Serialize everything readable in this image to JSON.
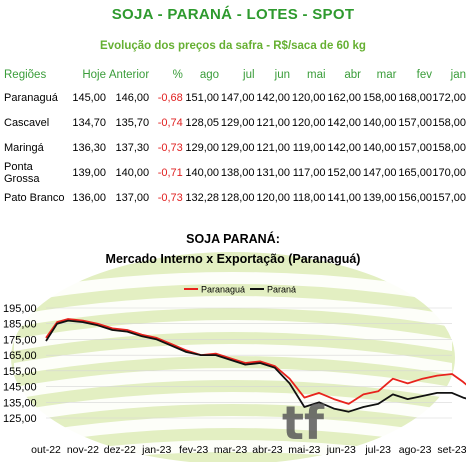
{
  "header": {
    "title": "SOJA - PARANÁ - LOTES - SPOT",
    "subtitle": "Evolução dos preços da safra - R$/saca de 60 kg"
  },
  "table": {
    "columns": [
      "Regiões",
      "Hoje",
      "Anterior",
      "%",
      "ago",
      "jul",
      "jun",
      "mai",
      "abr",
      "mar",
      "fev",
      "jan"
    ],
    "rows": [
      [
        "Paranaguá",
        "145,00",
        "146,00",
        "-0,68",
        "151,00",
        "147,00",
        "142,00",
        "120,00",
        "162,00",
        "158,00",
        "168,00",
        "172,00"
      ],
      [
        "Cascavel",
        "134,70",
        "135,70",
        "-0,74",
        "128,05",
        "129,00",
        "121,00",
        "120,00",
        "142,00",
        "140,00",
        "157,00",
        "158,00"
      ],
      [
        "Maringá",
        "136,30",
        "137,30",
        "-0,73",
        "129,00",
        "129,00",
        "121,00",
        "119,00",
        "142,00",
        "140,00",
        "157,00",
        "158,00"
      ],
      [
        "Ponta Grossa",
        "139,00",
        "140,00",
        "-0,71",
        "140,00",
        "138,00",
        "131,00",
        "117,00",
        "152,00",
        "147,00",
        "165,00",
        "170,00"
      ],
      [
        "Pato Branco",
        "136,00",
        "137,00",
        "-0,73",
        "132,28",
        "128,00",
        "120,00",
        "118,00",
        "141,00",
        "139,00",
        "156,00",
        "157,00"
      ]
    ]
  },
  "chart_data": {
    "type": "line",
    "title": "SOJA PARANÁ:",
    "subtitle": "Mercado Interno x Exportação (Paranaguá)",
    "xlabel": "",
    "ylabel": "",
    "ylim": [
      125,
      195
    ],
    "yticks": [
      "195,00",
      "185,00",
      "175,00",
      "165,00",
      "155,00",
      "145,00",
      "135,00",
      "125,00"
    ],
    "ytick_values": [
      195,
      185,
      175,
      165,
      155,
      145,
      135,
      125
    ],
    "xticks": [
      "out-22",
      "nov-22",
      "dez-22",
      "jan-23",
      "fev-23",
      "mar-23",
      "abr-23",
      "mai-23",
      "jun-23",
      "jul-23",
      "ago-23",
      "set-23"
    ],
    "legend_position": "top",
    "series": [
      {
        "name": "Paranaguá",
        "color": "#e8231d",
        "x": [
          0,
          0.3,
          0.6,
          1,
          1.4,
          1.8,
          2.2,
          2.6,
          3,
          3.4,
          3.8,
          4.2,
          4.6,
          5,
          5.4,
          5.8,
          6.2,
          6.6,
          7,
          7.4,
          7.8,
          8.2,
          8.6,
          9,
          9.4,
          9.8,
          10.2,
          10.6,
          11,
          11.3,
          11.6,
          11.9
        ],
        "y": [
          176,
          186,
          188,
          187,
          185,
          182,
          181,
          178,
          176,
          172,
          168,
          165,
          166,
          163,
          160,
          161,
          158,
          150,
          138,
          141,
          137,
          134,
          140,
          142,
          150,
          147,
          150,
          152,
          153,
          148,
          142,
          147
        ]
      },
      {
        "name": "Paraná",
        "color": "#111111",
        "x": [
          0,
          0.3,
          0.6,
          1,
          1.4,
          1.8,
          2.2,
          2.6,
          3,
          3.4,
          3.8,
          4.2,
          4.6,
          5,
          5.4,
          5.8,
          6.2,
          6.6,
          7,
          7.4,
          7.8,
          8.2,
          8.6,
          9,
          9.4,
          9.8,
          10.2,
          10.6,
          11,
          11.3,
          11.6,
          11.9
        ],
        "y": [
          174,
          185,
          187,
          186,
          184,
          181,
          180,
          177,
          175,
          171,
          167,
          165,
          165,
          162,
          159,
          160,
          157,
          147,
          132,
          135,
          131,
          129,
          132,
          134,
          140,
          137,
          139,
          141,
          141,
          138,
          136,
          139
        ]
      }
    ]
  }
}
